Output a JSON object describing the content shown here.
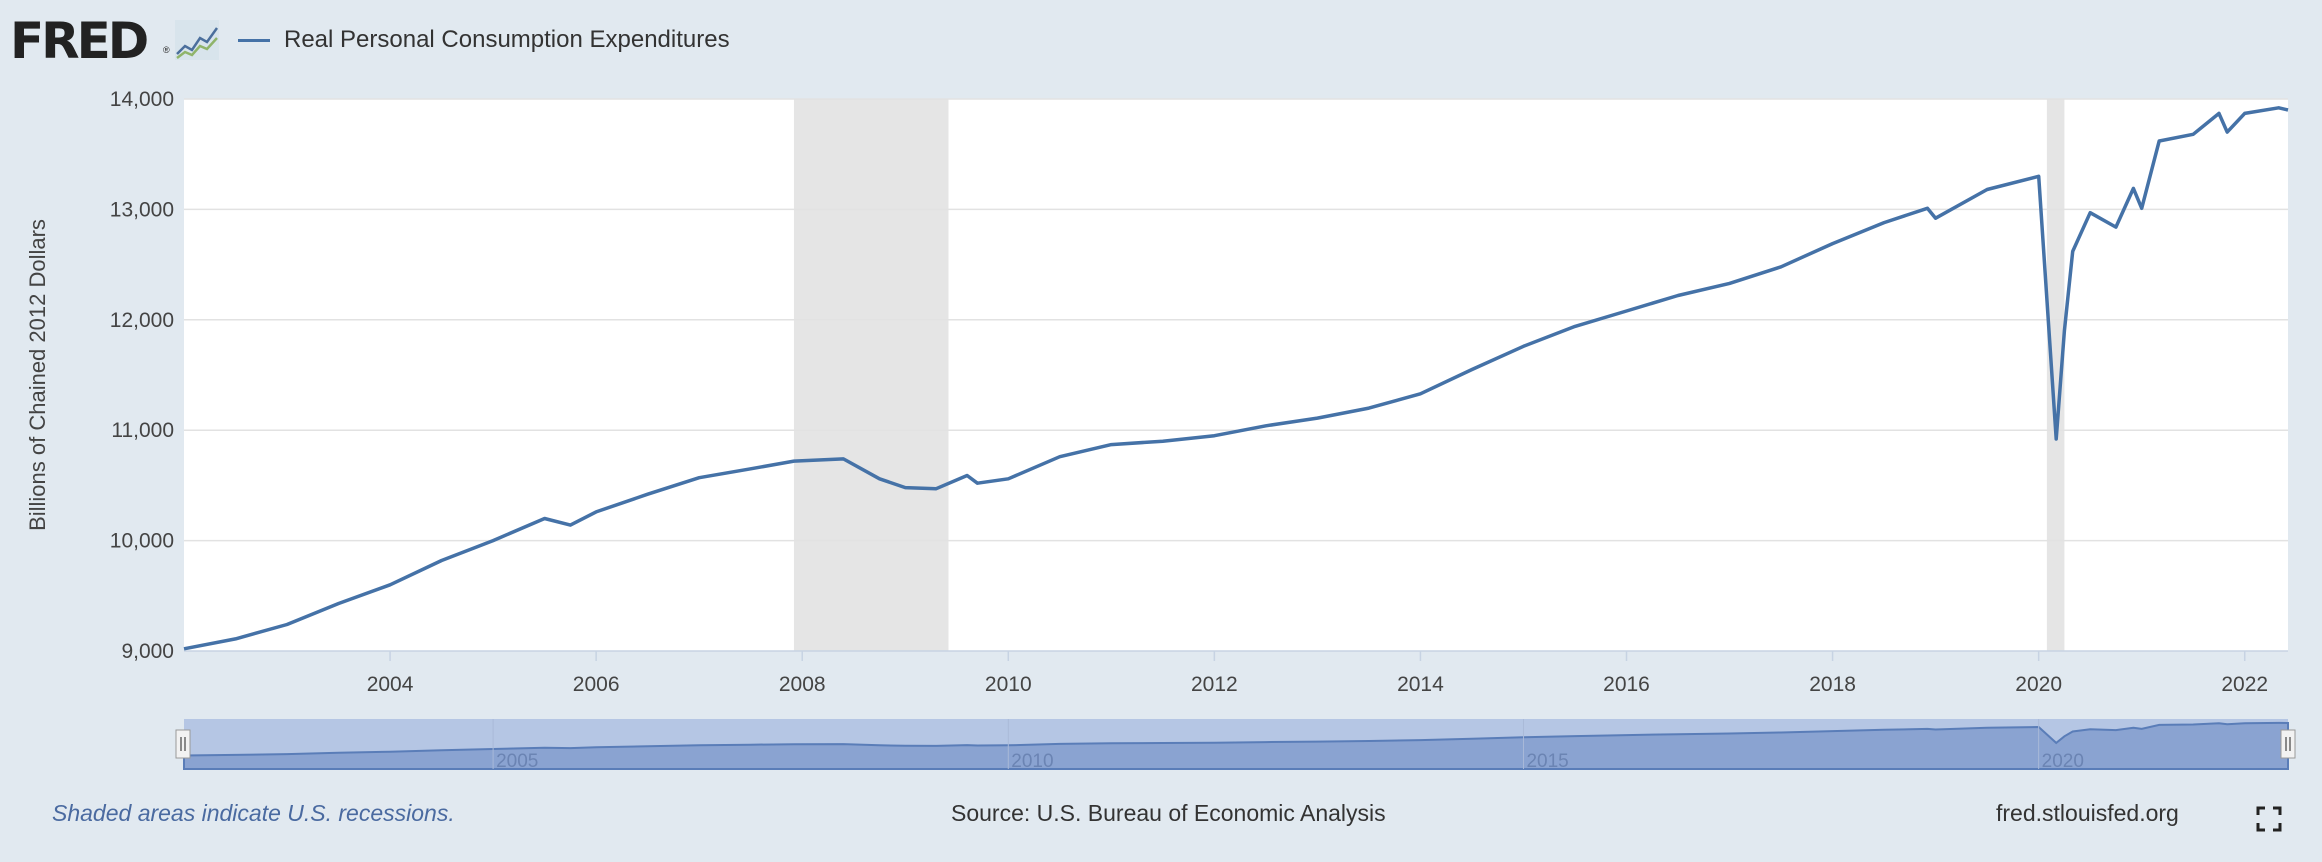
{
  "header": {
    "logo_text": "FRED",
    "logo_mark": "®",
    "logo_icon": "line-chart-icon",
    "series_name": "Real Personal Consumption Expenditures"
  },
  "colors": {
    "line": "#4572a7",
    "recession": "#e5e5e5",
    "background": "#e1e9f0",
    "plot": "#ffffff",
    "navigator_fill": "#8aa3d1",
    "navigator_bg": "#b5c6e4"
  },
  "chart_data": {
    "type": "line",
    "title": "",
    "ylabel": "Billions of Chained 2012 Dollars",
    "xlabel": "",
    "ylim": [
      9000,
      14000
    ],
    "xlim": [
      2002.0,
      2022.42
    ],
    "yticks": [
      "9,000",
      "10,000",
      "11,000",
      "12,000",
      "13,000",
      "14,000"
    ],
    "xticks": [
      "2004",
      "2006",
      "2008",
      "2010",
      "2012",
      "2014",
      "2016",
      "2018",
      "2020",
      "2022"
    ],
    "grid": true,
    "legend": "top-left",
    "recessions": [
      [
        2007.92,
        2009.42
      ],
      [
        2020.08,
        2020.25
      ]
    ],
    "series": [
      {
        "name": "Real Personal Consumption Expenditures",
        "x": [
          2002.0,
          2002.5,
          2003.0,
          2003.5,
          2004.0,
          2004.5,
          2005.0,
          2005.5,
          2005.75,
          2006.0,
          2006.5,
          2007.0,
          2007.5,
          2007.92,
          2008.4,
          2008.75,
          2009.0,
          2009.3,
          2009.6,
          2009.7,
          2010.0,
          2010.5,
          2011.0,
          2011.5,
          2012.0,
          2012.5,
          2013.0,
          2013.5,
          2014.0,
          2014.5,
          2015.0,
          2015.5,
          2016.0,
          2016.5,
          2017.0,
          2017.5,
          2018.0,
          2018.5,
          2018.92,
          2019.0,
          2019.5,
          2020.0,
          2020.17,
          2020.25,
          2020.33,
          2020.5,
          2020.75,
          2020.92,
          2021.0,
          2021.17,
          2021.5,
          2021.75,
          2021.83,
          2022.0,
          2022.33,
          2022.42
        ],
        "y": [
          9020,
          9110,
          9240,
          9430,
          9600,
          9820,
          10000,
          10200,
          10140,
          10260,
          10420,
          10570,
          10650,
          10720,
          10740,
          10560,
          10480,
          10470,
          10590,
          10520,
          10560,
          10760,
          10870,
          10900,
          10950,
          11040,
          11110,
          11200,
          11330,
          11550,
          11760,
          11940,
          12080,
          12220,
          12330,
          12480,
          12690,
          12880,
          13010,
          12920,
          13180,
          13300,
          10920,
          11900,
          12620,
          12970,
          12840,
          13190,
          13010,
          13620,
          13680,
          13870,
          13700,
          13870,
          13920,
          13900
        ]
      }
    ]
  },
  "navigator": {
    "ticks": [
      "2005",
      "2010",
      "2015",
      "2020"
    ]
  },
  "footer": {
    "note": "Shaded areas indicate U.S. recessions.",
    "source": "Source: U.S. Bureau of Economic Analysis",
    "site": "fred.stlouisfed.org",
    "fullscreen_icon": "fullscreen-icon"
  }
}
